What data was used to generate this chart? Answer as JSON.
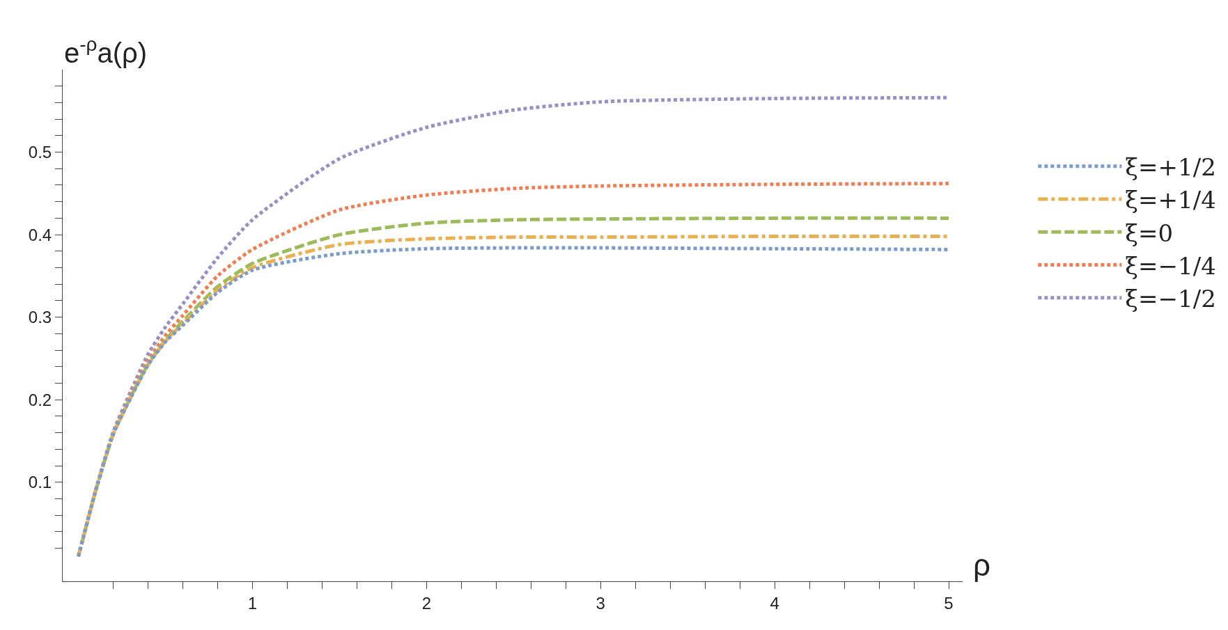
{
  "chart_data": {
    "type": "line",
    "xlabel": "ρ",
    "ylabel": "e$^{-ρ}$a(ρ)",
    "x": [
      0,
      0.1,
      0.2,
      0.3,
      0.4,
      0.5,
      0.6,
      0.8,
      1.0,
      1.5,
      2,
      2.5,
      3,
      4,
      5
    ],
    "series": [
      {
        "name": "ξ=+1/2",
        "color": "#7b9bcc",
        "line_style": "dotted",
        "values": [
          0.01,
          0.09,
          0.158,
          0.202,
          0.242,
          0.27,
          0.29,
          0.33,
          0.357,
          0.377,
          0.383,
          0.384,
          0.384,
          0.383,
          0.382
        ]
      },
      {
        "name": "ξ=+1/4",
        "color": "#e8b04f",
        "line_style": "dashdot",
        "values": [
          0.01,
          0.09,
          0.158,
          0.202,
          0.242,
          0.271,
          0.292,
          0.333,
          0.36,
          0.388,
          0.395,
          0.397,
          0.397,
          0.398,
          0.398
        ]
      },
      {
        "name": "ξ=0",
        "color": "#9dbb59",
        "line_style": "dashed",
        "values": [
          0.01,
          0.09,
          0.158,
          0.203,
          0.243,
          0.272,
          0.295,
          0.337,
          0.365,
          0.4,
          0.414,
          0.418,
          0.419,
          0.42,
          0.42
        ]
      },
      {
        "name": "ξ=−1/4",
        "color": "#ef7e55",
        "line_style": "dotted",
        "values": [
          0.01,
          0.09,
          0.159,
          0.205,
          0.247,
          0.278,
          0.302,
          0.35,
          0.382,
          0.43,
          0.448,
          0.456,
          0.459,
          0.461,
          0.462
        ]
      },
      {
        "name": "ξ=−1/2",
        "color": "#9b8ec4",
        "line_style": "dotted",
        "values": [
          0.01,
          0.091,
          0.161,
          0.21,
          0.255,
          0.288,
          0.316,
          0.372,
          0.418,
          0.492,
          0.53,
          0.551,
          0.561,
          0.565,
          0.566
        ]
      }
    ],
    "xlim": [
      -0.09,
      5.08
    ],
    "ylim": [
      -0.02,
      0.6
    ],
    "xticks": [
      {
        "value": 0.2,
        "label": null
      },
      {
        "value": 0.4,
        "label": null
      },
      {
        "value": 0.6,
        "label": null
      },
      {
        "value": 0.8,
        "label": null
      },
      1,
      {
        "value": 1.2,
        "label": null
      },
      {
        "value": 1.4,
        "label": null
      },
      {
        "value": 1.6,
        "label": null
      },
      {
        "value": 1.8,
        "label": null
      },
      2,
      {
        "value": 2.2,
        "label": null
      },
      {
        "value": 2.4,
        "label": null
      },
      {
        "value": 2.6,
        "label": null
      },
      {
        "value": 2.8,
        "label": null
      },
      3,
      {
        "value": 3.2,
        "label": null
      },
      {
        "value": 3.4,
        "label": null
      },
      {
        "value": 3.6,
        "label": null
      },
      {
        "value": 3.8,
        "label": null
      },
      4,
      {
        "value": 4.2,
        "label": null
      },
      {
        "value": 4.4,
        "label": null
      },
      {
        "value": 4.6,
        "label": null
      },
      {
        "value": 4.8,
        "label": null
      },
      5
    ],
    "yticks": [
      {
        "value": 0.02,
        "label": null
      },
      {
        "value": 0.04,
        "label": null
      },
      {
        "value": 0.06,
        "label": null
      },
      {
        "value": 0.08,
        "label": null
      },
      0.1,
      {
        "value": 0.12,
        "label": null
      },
      {
        "value": 0.14,
        "label": null
      },
      {
        "value": 0.16,
        "label": null
      },
      {
        "value": 0.18,
        "label": null
      },
      0.2,
      {
        "value": 0.22,
        "label": null
      },
      {
        "value": 0.24,
        "label": null
      },
      {
        "value": 0.26,
        "label": null
      },
      {
        "value": 0.28,
        "label": null
      },
      0.3,
      {
        "value": 0.32,
        "label": null
      },
      {
        "value": 0.34,
        "label": null
      },
      {
        "value": 0.36,
        "label": null
      },
      {
        "value": 0.38,
        "label": null
      },
      0.4,
      {
        "value": 0.42,
        "label": null
      },
      {
        "value": 0.44,
        "label": null
      },
      {
        "value": 0.46,
        "label": null
      },
      {
        "value": 0.48,
        "label": null
      },
      0.5,
      {
        "value": 0.52,
        "label": null
      },
      {
        "value": 0.54,
        "label": null
      },
      {
        "value": 0.56,
        "label": null
      },
      {
        "value": 0.58,
        "label": null
      }
    ],
    "legend": "right",
    "marker": "none"
  }
}
